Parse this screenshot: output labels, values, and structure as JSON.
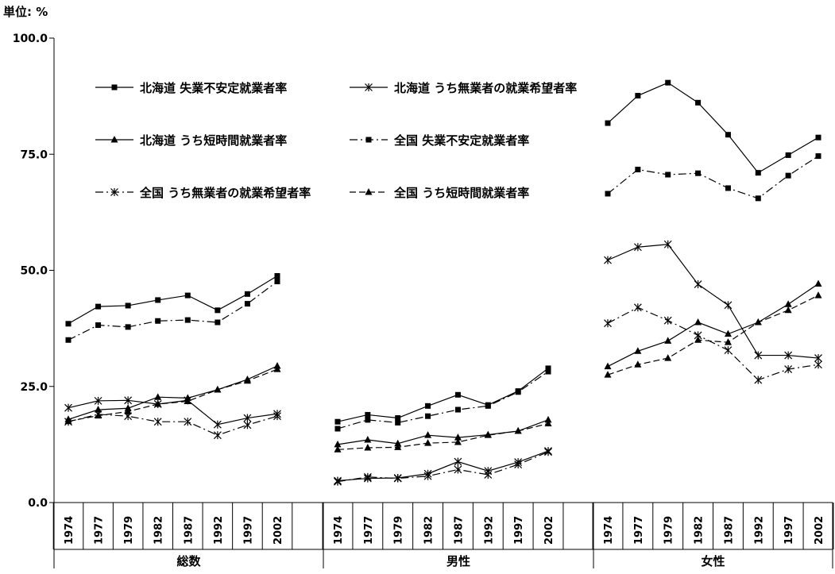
{
  "chart_data": {
    "type": "line",
    "unit_label": "単位: %",
    "ylim": [
      0,
      100
    ],
    "y_ticks": [
      "0.0",
      "25.0",
      "50.0",
      "75.0",
      "100.0"
    ],
    "y_tick_values": [
      0,
      25,
      50,
      75,
      100
    ],
    "categories": [
      "1974",
      "1977",
      "1979",
      "1982",
      "1987",
      "1992",
      "1997",
      "2002"
    ],
    "groups": [
      "総数",
      "男性",
      "女性"
    ],
    "grid": false,
    "legend_placement": "top-left",
    "series": [
      {
        "name": "北海道 失業不安定就業者率",
        "line": "solid",
        "marker": "square",
        "values": [
          [
            38.5,
            42.2,
            42.4,
            43.6,
            44.6,
            41.4,
            44.9,
            48.8
          ],
          [
            17.4,
            18.9,
            18.2,
            20.8,
            23.2,
            21.0,
            24.0,
            28.9
          ],
          [
            81.7,
            87.6,
            90.4,
            86.1,
            79.2,
            71.0,
            74.8,
            78.6
          ]
        ]
      },
      {
        "name": "北海道 うち無業者の就業希望者率",
        "line": "solid",
        "marker": "star",
        "values": [
          [
            20.4,
            21.9,
            22.0,
            21.2,
            22.0,
            16.8,
            18.2,
            19.1
          ],
          [
            4.7,
            5.2,
            5.3,
            6.2,
            8.8,
            6.8,
            8.7,
            11.1
          ],
          [
            52.2,
            55.0,
            55.6,
            47.0,
            42.5,
            31.7,
            31.7,
            31.1
          ]
        ]
      },
      {
        "name": "北海道 うち短時間就業者率",
        "line": "solid",
        "marker": "triangle",
        "values": [
          [
            17.9,
            20.0,
            20.3,
            22.7,
            22.5,
            24.3,
            26.5,
            29.4
          ],
          [
            12.5,
            13.5,
            12.7,
            14.5,
            14.0,
            14.6,
            15.4,
            17.8
          ],
          [
            29.3,
            32.6,
            34.8,
            38.8,
            36.3,
            38.8,
            42.7,
            47.1
          ]
        ]
      },
      {
        "name": "全国 失業不安定就業者率",
        "line": "dash-dot",
        "marker": "square",
        "values": [
          [
            35.0,
            38.2,
            37.8,
            39.1,
            39.3,
            38.8,
            42.8,
            47.6
          ],
          [
            15.9,
            17.8,
            17.2,
            18.6,
            20.0,
            20.8,
            23.8,
            28.2
          ],
          [
            66.5,
            71.7,
            70.6,
            70.9,
            67.7,
            65.5,
            70.4,
            74.6
          ]
        ]
      },
      {
        "name": "全国 うち無業者の就業希望者率",
        "line": "dash-dot",
        "marker": "star",
        "values": [
          [
            17.4,
            19.0,
            18.6,
            17.4,
            17.4,
            14.5,
            16.7,
            18.6
          ],
          [
            4.5,
            5.5,
            5.2,
            5.7,
            7.1,
            6.0,
            8.2,
            10.9
          ],
          [
            38.6,
            42.0,
            39.2,
            36.0,
            32.8,
            26.4,
            28.7,
            29.7
          ]
        ]
      },
      {
        "name": "全国 うち短時間就業者率",
        "line": "dashed",
        "marker": "triangle",
        "values": [
          [
            17.5,
            18.7,
            19.6,
            21.2,
            21.8,
            24.3,
            26.2,
            28.7
          ],
          [
            11.4,
            11.8,
            11.9,
            12.8,
            13.0,
            14.5,
            15.4,
            17.0
          ],
          [
            27.5,
            29.7,
            31.1,
            35.0,
            34.5,
            38.8,
            41.4,
            44.6
          ]
        ]
      }
    ]
  }
}
